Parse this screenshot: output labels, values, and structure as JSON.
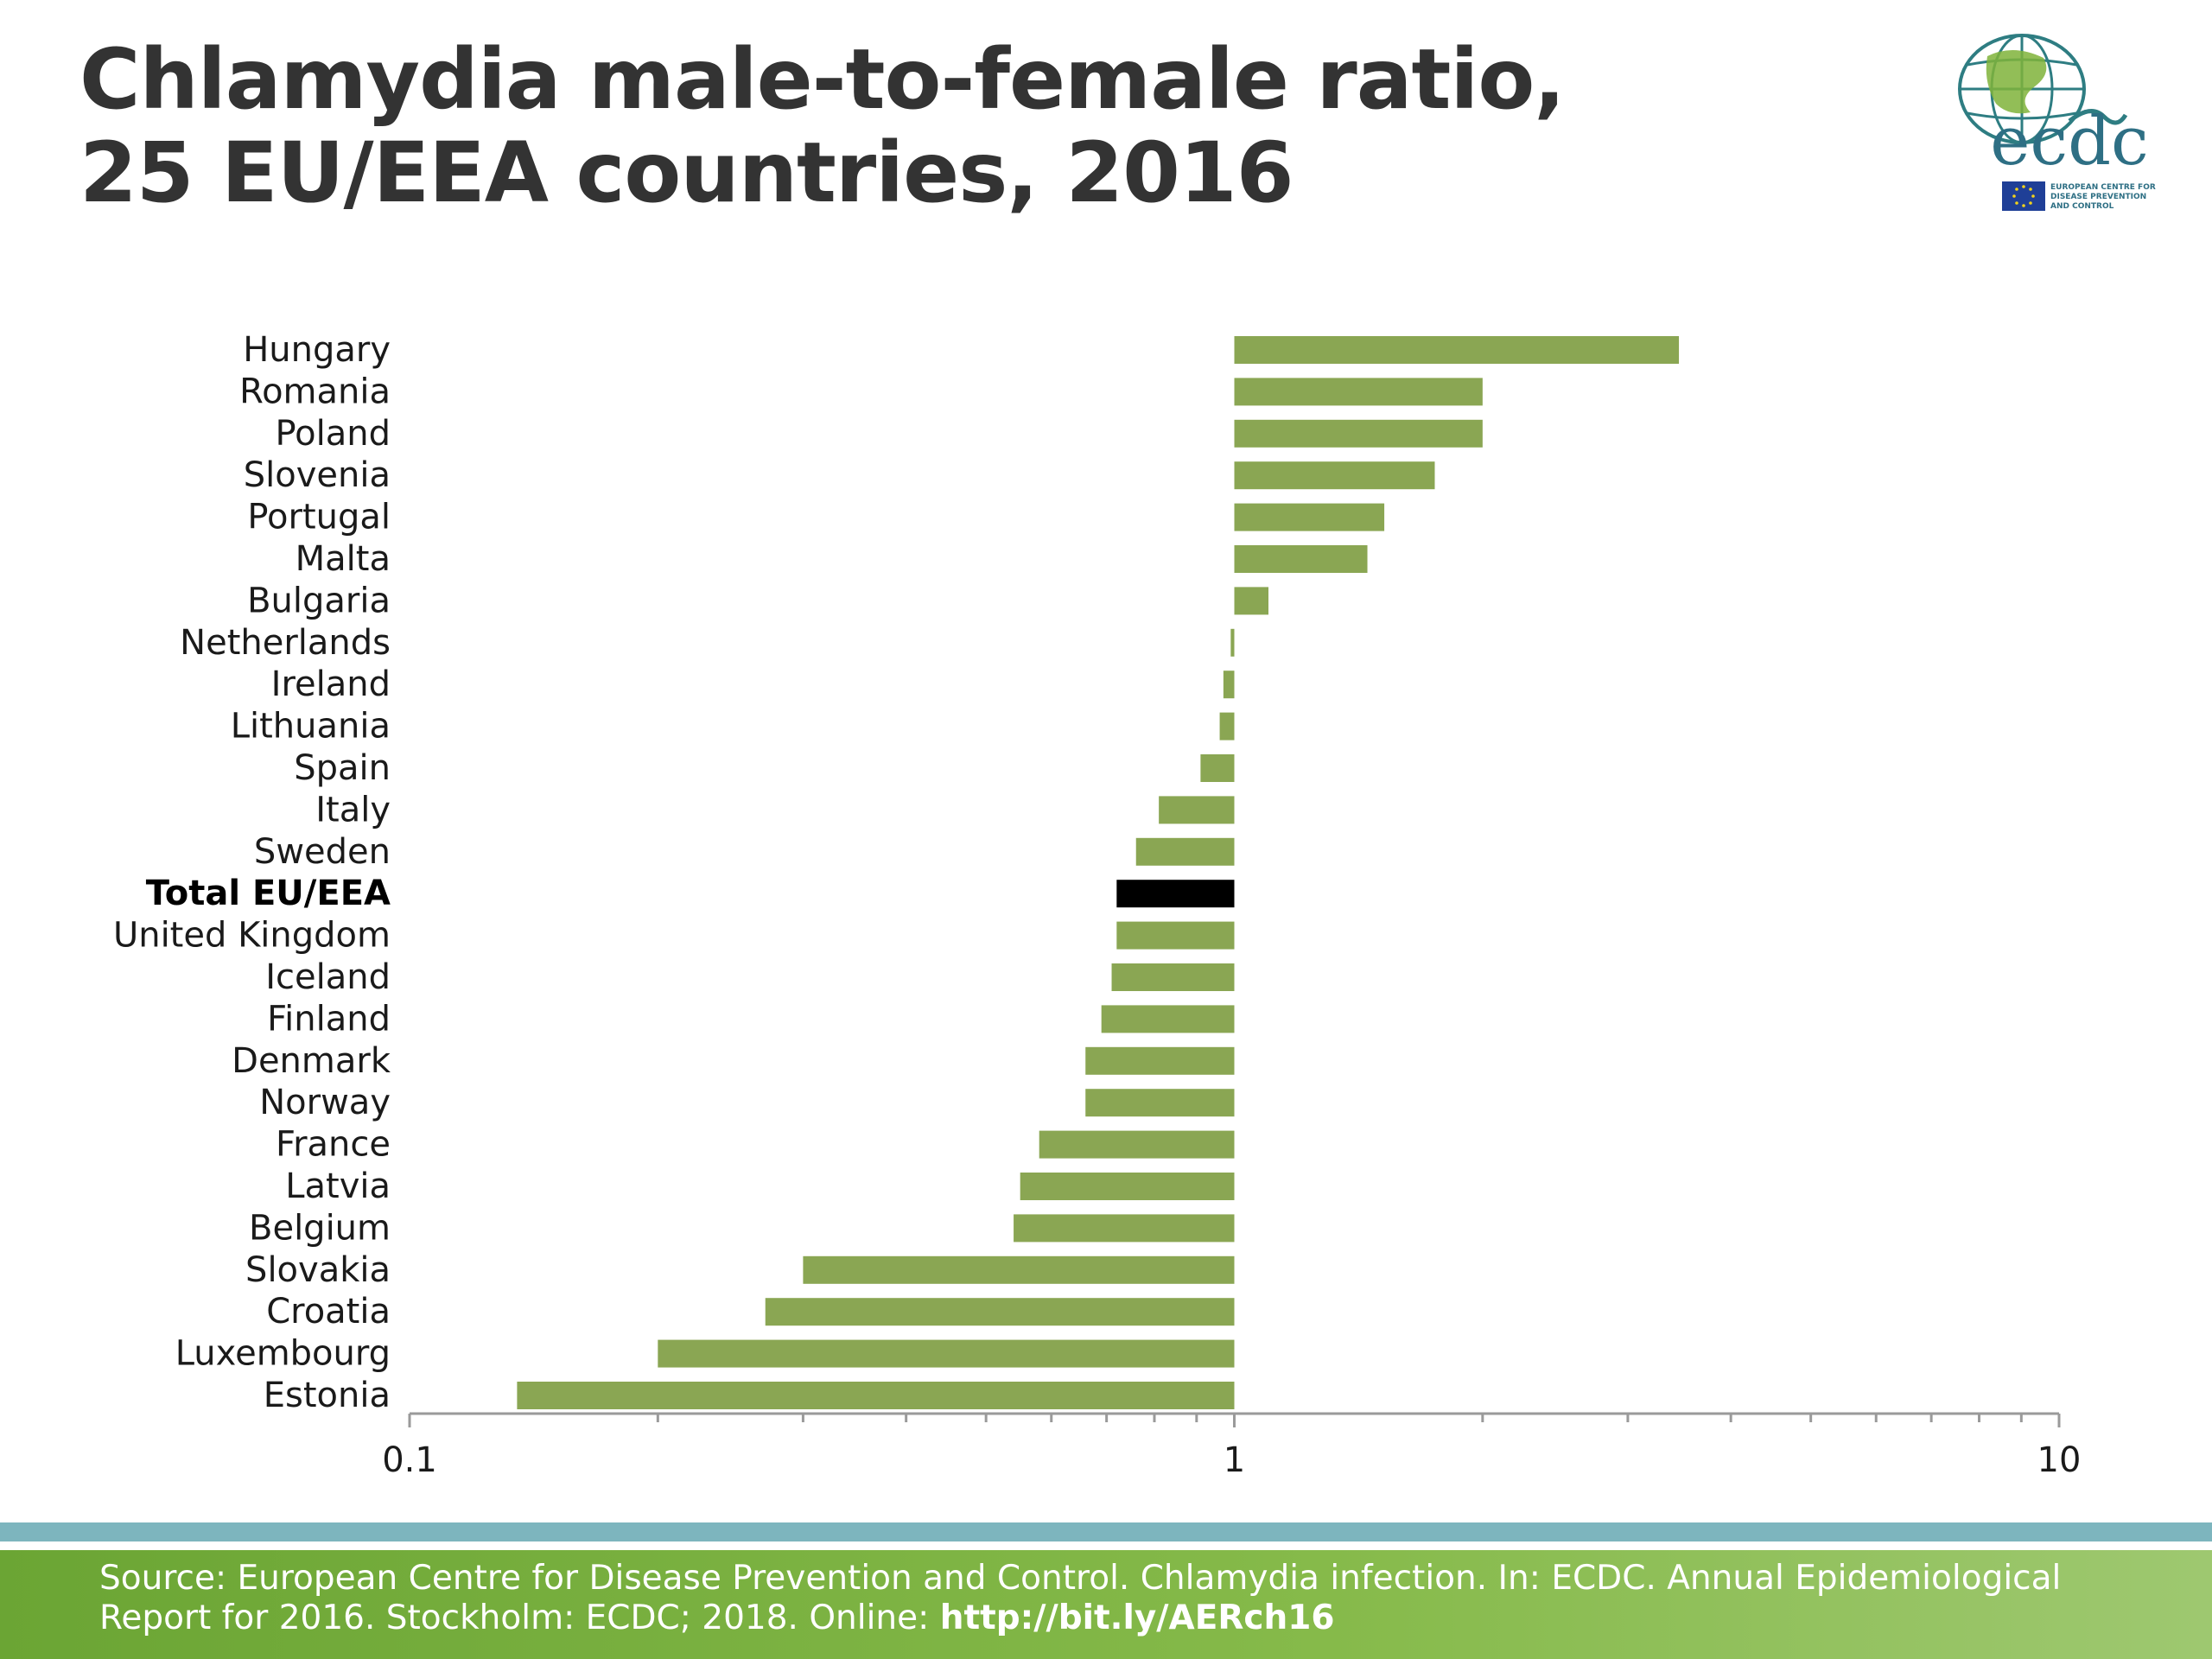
{
  "title": {
    "line1": "Chlamydia male-to-female ratio,",
    "line2": "25 EU/EEA countries, 2016"
  },
  "logo": {
    "wordmark": "ecdc",
    "subtitle_lines": [
      "EUROPEAN CENTRE FOR",
      "DISEASE PREVENTION",
      "AND CONTROL"
    ]
  },
  "footer": {
    "source_text": "Source: European Centre for Disease Prevention and Control. Chlamydia infection. In: ECDC. Annual Epidemiological Report for 2016. Stockholm: ECDC; 2018. Online: ",
    "link_text": "http://bit.ly/AERch16"
  },
  "colors": {
    "bar": "#8aa653",
    "highlight_bar": "#000000",
    "axis": "#9a9a9a",
    "text": "#1a1a1a",
    "footer_green": "#6ba534",
    "footer_teal": "#7db5be"
  },
  "chart_data": {
    "type": "bar",
    "orientation": "horizontal",
    "x_scale": "log",
    "xlim": [
      0.1,
      10
    ],
    "baseline": 1,
    "x_ticks": [
      "0.1",
      "1",
      "10"
    ],
    "highlight": "Total EU/EEA",
    "categories": [
      "Hungary",
      "Romania",
      "Poland",
      "Slovenia",
      "Portugal",
      "Malta",
      "Bulgaria",
      "Netherlands",
      "Ireland",
      "Lithuania",
      "Spain",
      "Italy",
      "Sweden",
      "Total EU/EEA",
      "United Kingdom",
      "Iceland",
      "Finland",
      "Denmark",
      "Norway",
      "France",
      "Latvia",
      "Belgium",
      "Slovakia",
      "Croatia",
      "Luxembourg",
      "Estonia"
    ],
    "values": [
      3.46,
      2.0,
      2.0,
      1.75,
      1.52,
      1.45,
      1.1,
      0.99,
      0.97,
      0.96,
      0.91,
      0.81,
      0.76,
      0.72,
      0.72,
      0.71,
      0.69,
      0.66,
      0.66,
      0.58,
      0.55,
      0.54,
      0.3,
      0.27,
      0.2,
      0.135
    ]
  }
}
